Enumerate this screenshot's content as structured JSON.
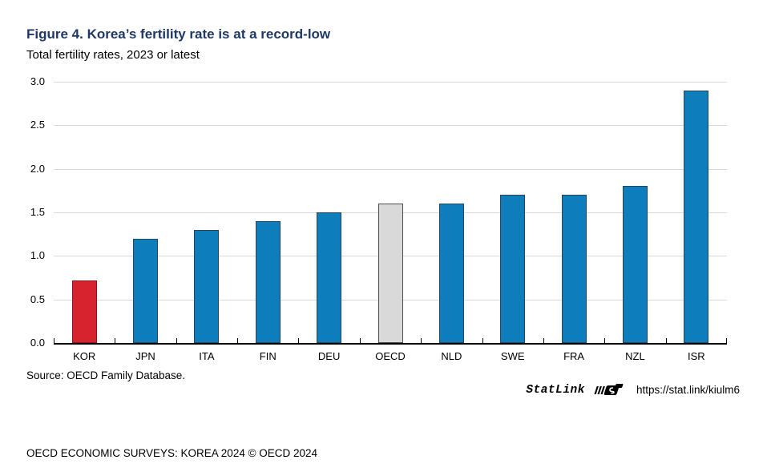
{
  "figure": {
    "title": "Figure 4. Korea’s fertility rate is at a record-low",
    "subtitle": "Total fertility rates, 2023 or latest",
    "source": "Source: OECD Family Database.",
    "statlink_label": "StatLink",
    "statlink_url": "https://stat.link/kiulm6",
    "footer": "OECD ECONOMIC SURVEYS: KOREA 2024 © OECD 2024"
  },
  "chart_data": {
    "type": "bar",
    "title": "Figure 4. Korea’s fertility rate is at a record-low",
    "subtitle": "Total fertility rates, 2023 or latest",
    "categories": [
      "KOR",
      "JPN",
      "ITA",
      "FIN",
      "DEU",
      "OECD",
      "NLD",
      "SWE",
      "FRA",
      "NZL",
      "ISR"
    ],
    "values": [
      0.72,
      1.2,
      1.3,
      1.4,
      1.5,
      1.6,
      1.6,
      1.7,
      1.7,
      1.8,
      2.9
    ],
    "bar_styles": [
      "red",
      "blue",
      "blue",
      "blue",
      "blue",
      "gray",
      "blue",
      "blue",
      "blue",
      "blue",
      "blue"
    ],
    "xlabel": "",
    "ylabel": "",
    "ylim": [
      0,
      3.0
    ],
    "ytick_labels": [
      "0.0",
      "0.5",
      "1.0",
      "1.5",
      "2.0",
      "2.5",
      "3.0"
    ],
    "grid": true,
    "legend": "none"
  },
  "colors": {
    "title_navy": "#1f3864",
    "bar_blue": "#0d7dbc",
    "bar_red": "#d7232e",
    "bar_gray": "#d9d9d9",
    "gridline": "#d9d9d9",
    "axis": "#000000"
  }
}
